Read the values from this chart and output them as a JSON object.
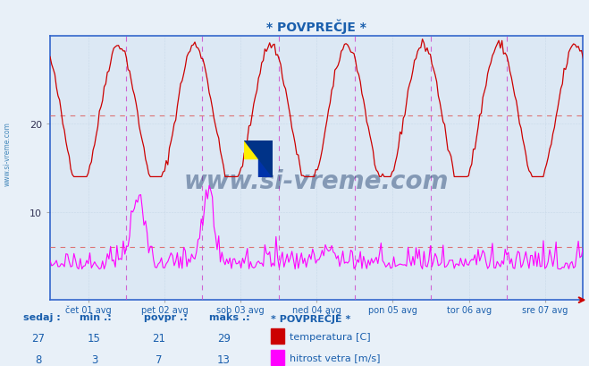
{
  "title": "* POVPREČJE *",
  "title_color": "#1a5fad",
  "bg_color": "#e8f0f8",
  "plot_bg_color": "#dce8f4",
  "grid_color": "#b8cce0",
  "x_label_color": "#1a5fad",
  "watermark": "www.si-vreme.com",
  "watermark_color": "#1a3a6a",
  "sidebar_color": "#4488bb",
  "ylim": [
    0,
    30
  ],
  "yticks": [
    10,
    20
  ],
  "hlines": [
    6,
    21
  ],
  "hline_color": "#dd6666",
  "vline_color": "#cc44cc",
  "x_ticks_labels": [
    "čet 01 avg",
    "pet 02 avg",
    "sob 03 avg",
    "ned 04 avg",
    "pon 05 avg",
    "tor 06 avg",
    "sre 07 avg"
  ],
  "n_points": 336,
  "temp_color": "#cc0000",
  "wind_color": "#ff00ff",
  "spine_color": "#3366cc",
  "temp_min": 15,
  "temp_max": 29,
  "temp_avg": 21,
  "temp_cur": 27,
  "wind_min": 3,
  "wind_max": 13,
  "wind_avg": 7,
  "wind_cur": 8,
  "footer_label_color": "#1a5fad",
  "legend_title_color": "#1a5fad"
}
